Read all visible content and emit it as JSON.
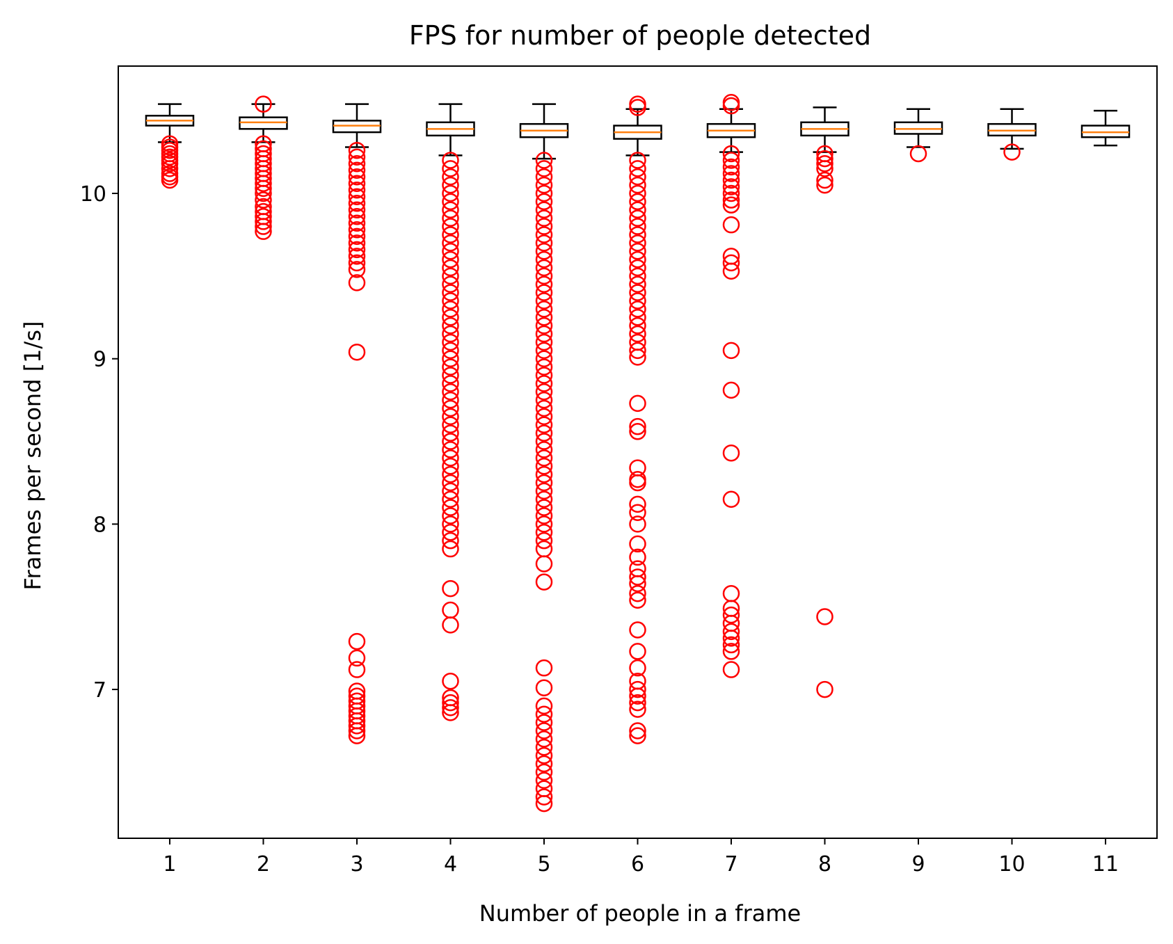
{
  "chart_data": {
    "type": "box",
    "title": "FPS for number of people detected",
    "xlabel": "Number of people in a frame",
    "ylabel": "Frames per second [1/s]",
    "ylim": [
      6.1,
      10.77
    ],
    "yticks": [
      7,
      8,
      9,
      10
    ],
    "categories": [
      "1",
      "2",
      "3",
      "4",
      "5",
      "6",
      "7",
      "8",
      "9",
      "10",
      "11"
    ],
    "boxes": [
      {
        "category": "1",
        "whisker_low": 10.31,
        "q1": 10.41,
        "median": 10.44,
        "q3": 10.47,
        "whisker_high": 10.54,
        "outliers": [
          10.08,
          10.1,
          10.12,
          10.15,
          10.18,
          10.2,
          10.22,
          10.24,
          10.26,
          10.28,
          10.3
        ]
      },
      {
        "category": "2",
        "whisker_low": 10.31,
        "q1": 10.39,
        "median": 10.43,
        "q3": 10.46,
        "whisker_high": 10.54,
        "outliers": [
          10.54,
          9.77,
          9.8,
          9.83,
          9.86,
          9.89,
          9.92,
          9.96,
          10.0,
          10.03,
          10.06,
          10.09,
          10.12,
          10.15,
          10.18,
          10.21,
          10.24,
          10.27,
          10.3
        ]
      },
      {
        "category": "3",
        "whisker_low": 10.28,
        "q1": 10.37,
        "median": 10.41,
        "q3": 10.44,
        "whisker_high": 10.54,
        "outliers": [
          9.04,
          9.46,
          9.54,
          9.58,
          9.62,
          9.66,
          9.7,
          9.74,
          9.78,
          9.82,
          9.86,
          9.9,
          9.94,
          9.98,
          10.02,
          10.06,
          10.1,
          10.14,
          10.18,
          10.22,
          10.26,
          6.72,
          6.75,
          6.78,
          6.81,
          6.84,
          6.87,
          6.9,
          6.93,
          6.96,
          6.99,
          7.12,
          7.19,
          7.29
        ]
      },
      {
        "category": "4",
        "whisker_low": 10.23,
        "q1": 10.35,
        "median": 10.39,
        "q3": 10.43,
        "whisker_high": 10.54,
        "outliers": [
          6.86,
          6.89,
          6.92,
          6.95,
          7.05,
          7.39,
          7.48,
          7.61,
          7.85,
          7.9,
          7.95,
          8.0,
          8.05,
          8.1,
          8.15,
          8.2,
          8.25,
          8.3,
          8.35,
          8.4,
          8.45,
          8.5,
          8.55,
          8.6,
          8.65,
          8.7,
          8.75,
          8.8,
          8.85,
          8.9,
          8.95,
          9.0,
          9.05,
          9.1,
          9.15,
          9.2,
          9.25,
          9.3,
          9.35,
          9.4,
          9.45,
          9.5,
          9.55,
          9.6,
          9.65,
          9.7,
          9.75,
          9.8,
          9.85,
          9.9,
          9.95,
          10.0,
          10.05,
          10.1,
          10.15,
          10.2
        ]
      },
      {
        "category": "5",
        "whisker_low": 10.21,
        "q1": 10.34,
        "median": 10.38,
        "q3": 10.42,
        "whisker_high": 10.54,
        "outliers": [
          6.31,
          6.35,
          6.4,
          6.45,
          6.5,
          6.55,
          6.6,
          6.65,
          6.7,
          6.75,
          6.8,
          6.85,
          6.9,
          7.01,
          7.13,
          7.65,
          7.76,
          7.85,
          7.9,
          7.95,
          8.0,
          8.05,
          8.1,
          8.15,
          8.2,
          8.25,
          8.3,
          8.35,
          8.4,
          8.45,
          8.5,
          8.55,
          8.6,
          8.65,
          8.7,
          8.75,
          8.8,
          8.85,
          8.9,
          8.95,
          9.0,
          9.05,
          9.1,
          9.15,
          9.2,
          9.25,
          9.3,
          9.35,
          9.4,
          9.45,
          9.5,
          9.55,
          9.6,
          9.65,
          9.7,
          9.75,
          9.8,
          9.85,
          9.9,
          9.95,
          10.0,
          10.05,
          10.1,
          10.15,
          10.2
        ]
      },
      {
        "category": "6",
        "whisker_low": 10.23,
        "q1": 10.33,
        "median": 10.37,
        "q3": 10.41,
        "whisker_high": 10.51,
        "outliers": [
          10.52,
          10.54,
          6.72,
          6.75,
          6.88,
          6.92,
          6.96,
          7.0,
          7.05,
          7.13,
          7.23,
          7.36,
          7.54,
          7.58,
          7.64,
          7.68,
          7.73,
          7.8,
          7.88,
          8.0,
          8.07,
          8.12,
          8.25,
          8.27,
          8.34,
          8.56,
          8.59,
          8.73,
          9.01,
          9.05,
          9.1,
          9.15,
          9.2,
          9.25,
          9.3,
          9.35,
          9.4,
          9.45,
          9.5,
          9.55,
          9.6,
          9.65,
          9.7,
          9.75,
          9.8,
          9.85,
          9.9,
          9.95,
          10.0,
          10.05,
          10.1,
          10.15,
          10.2
        ]
      },
      {
        "category": "7",
        "whisker_low": 10.25,
        "q1": 10.34,
        "median": 10.38,
        "q3": 10.42,
        "whisker_high": 10.51,
        "outliers": [
          10.53,
          10.55,
          7.12,
          7.23,
          7.27,
          7.31,
          7.35,
          7.4,
          7.45,
          7.49,
          7.58,
          8.15,
          8.43,
          8.81,
          9.05,
          9.53,
          9.58,
          9.62,
          9.81,
          9.93,
          9.96,
          10.0,
          10.04,
          10.08,
          10.12,
          10.16,
          10.2,
          10.24
        ]
      },
      {
        "category": "8",
        "whisker_low": 10.25,
        "q1": 10.35,
        "median": 10.39,
        "q3": 10.43,
        "whisker_high": 10.52,
        "outliers": [
          7.0,
          7.44,
          10.05,
          10.08,
          10.15,
          10.18,
          10.21,
          10.24
        ]
      },
      {
        "category": "9",
        "whisker_low": 10.28,
        "q1": 10.36,
        "median": 10.39,
        "q3": 10.43,
        "whisker_high": 10.51,
        "outliers": [
          10.24
        ]
      },
      {
        "category": "10",
        "whisker_low": 10.27,
        "q1": 10.35,
        "median": 10.38,
        "q3": 10.42,
        "whisker_high": 10.51,
        "outliers": [
          10.25
        ]
      },
      {
        "category": "11",
        "whisker_low": 10.29,
        "q1": 10.34,
        "median": 10.37,
        "q3": 10.41,
        "whisker_high": 10.5,
        "outliers": []
      }
    ],
    "colors": {
      "box": "#000000",
      "median": "#ff7f0e",
      "outlier": "#ff0000"
    },
    "grid": false,
    "legend": "none"
  }
}
